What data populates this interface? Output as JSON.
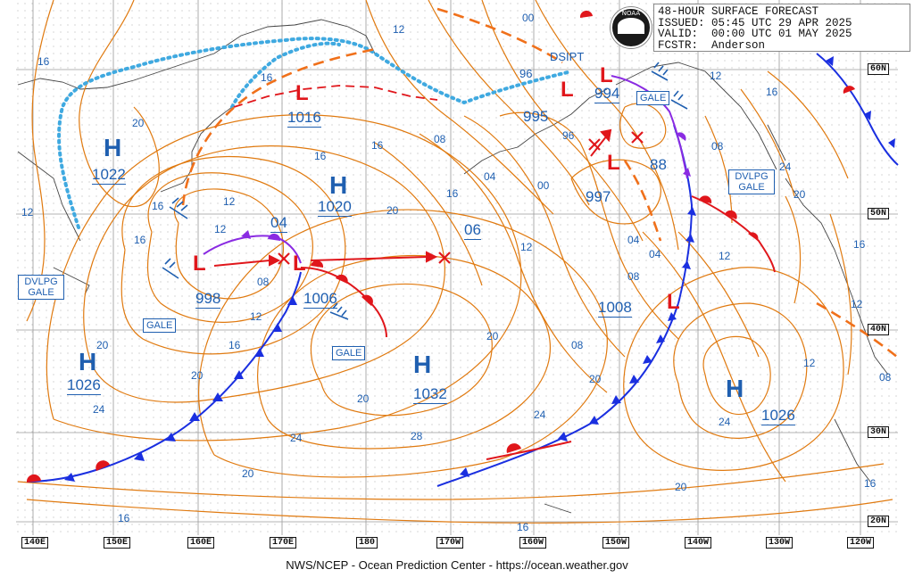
{
  "header": {
    "line1": "48-HOUR SURFACE FORECAST",
    "issued": "ISSUED: 05:45 UTC 29 APR 2025",
    "valid": "VALID:  00:00 UTC 01 MAY 2025",
    "fcstr": "FCSTR:  Anderson"
  },
  "logo_text": "NOAA",
  "credit": "NWS/NCEP - Ocean Prediction Center - https://ocean.weather.gov",
  "colors": {
    "isobar": "#e07a10",
    "text_blue": "#1f5fb0",
    "cold_front": "#1a2fe0",
    "warm_front": "#e0161b",
    "occluded": "#8a2be2",
    "ice": "#3fa9e0",
    "grid": "#9a9a9a"
  },
  "longitude_labels": [
    "140E",
    "150E",
    "160E",
    "170E",
    "180",
    "170W",
    "160W",
    "150W",
    "140W",
    "130W",
    "120W"
  ],
  "latitude_labels": [
    "60N",
    "50N",
    "40N",
    "30N",
    "20N"
  ],
  "pressure_centers": [
    {
      "type": "H",
      "value": "1022"
    },
    {
      "type": "H",
      "value": "1020"
    },
    {
      "type": "H",
      "value": "1026"
    },
    {
      "type": "H",
      "value": "1032"
    },
    {
      "type": "H",
      "value": "1026"
    },
    {
      "type": "L",
      "value": "998"
    },
    {
      "type": "L",
      "value": "1006"
    },
    {
      "type": "L",
      "value": "1016"
    },
    {
      "type": "L",
      "value": "994"
    },
    {
      "type": "L",
      "value": "995"
    },
    {
      "type": "L",
      "value": "997"
    },
    {
      "type": "L",
      "value": "1008"
    }
  ],
  "inline_labels": [
    "04",
    "06",
    "88",
    "96",
    "DSIPT"
  ],
  "warnings": [
    "GALE",
    "GALE",
    "GALE",
    "DVLPG GALE",
    "DVLPG GALE"
  ],
  "isobar_labels": [
    "16",
    "20",
    "12",
    "16",
    "12",
    "20",
    "16",
    "16",
    "08",
    "04",
    "00",
    "96",
    "12",
    "08",
    "04",
    "00",
    "12",
    "12",
    "24",
    "08",
    "04",
    "12",
    "16",
    "24",
    "28",
    "24",
    "20",
    "16",
    "20",
    "16",
    "20",
    "24",
    "12",
    "08",
    "16",
    "20",
    "24",
    "16",
    "20",
    "12",
    "16",
    "20",
    "16",
    "20",
    "12",
    "16",
    "20",
    "16",
    "08",
    "12",
    "08"
  ]
}
